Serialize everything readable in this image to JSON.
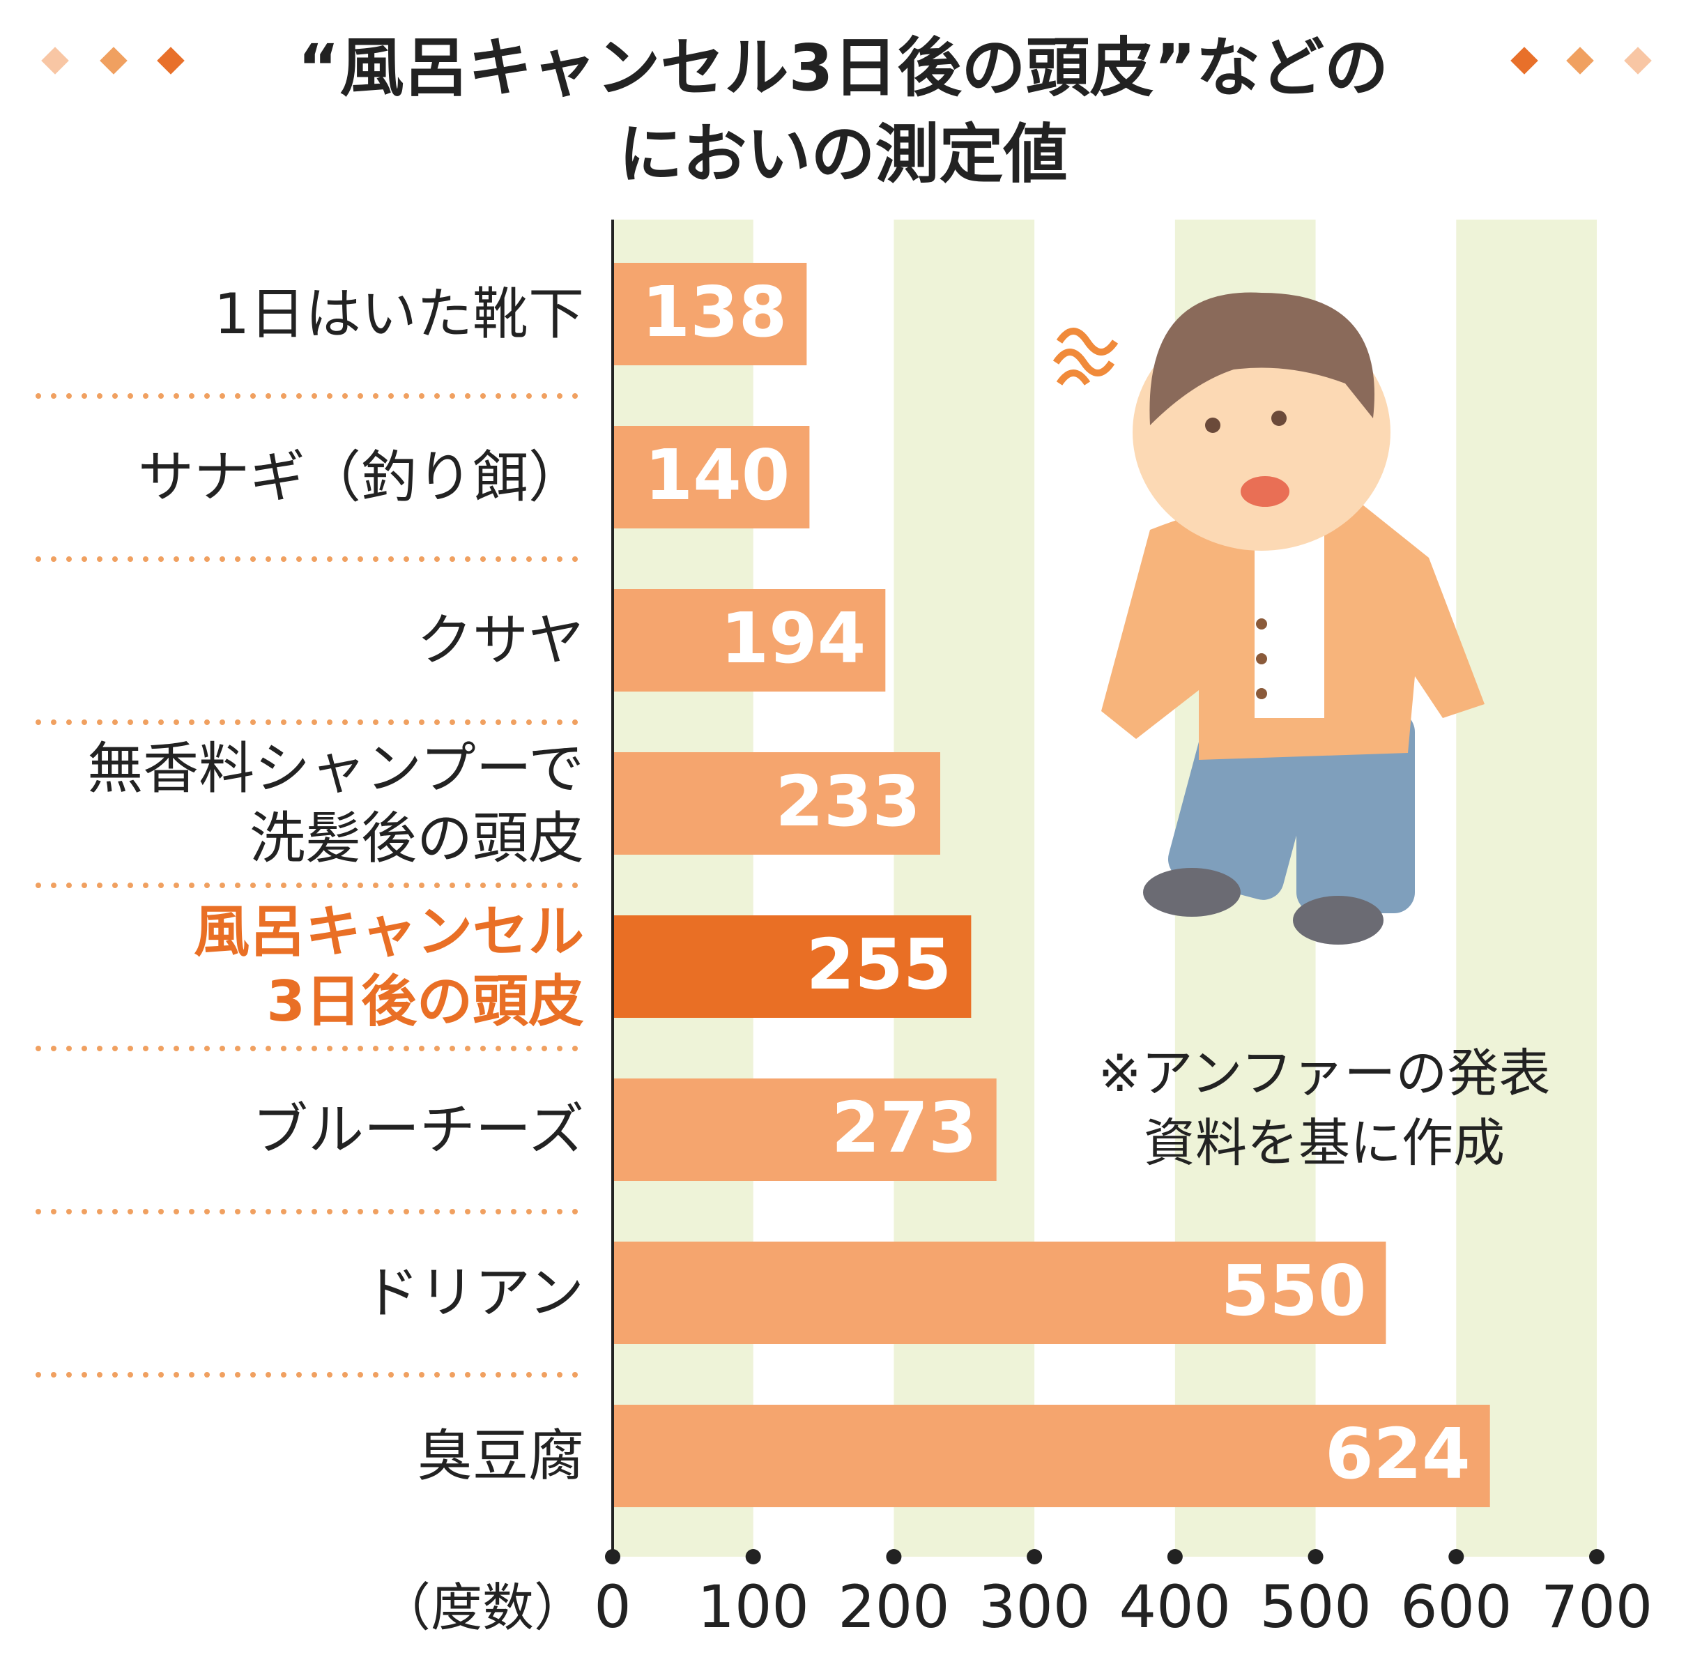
{
  "chart_data": {
    "type": "barh",
    "title": "“風呂キャンセル3日後の頭皮”などの\nにおいの測定値",
    "categories": [
      "1日はいた靴下",
      "サナギ（釣り餌）",
      "クサヤ",
      "無香料シャンプーで\n洗髪後の頭皮",
      "風呂キャンセル\n3日後の頭皮",
      "ブルーチーズ",
      "ドリアン",
      "臭豆腐"
    ],
    "values": [
      138,
      140,
      194,
      233,
      255,
      273,
      550,
      624
    ],
    "colors": [
      "#f5a56e",
      "#f5a56e",
      "#f5a56e",
      "#f5a56e",
      "#e96f25",
      "#f5a56e",
      "#f5a56e",
      "#f5a56e"
    ],
    "label_colors": [
      "#222222",
      "#222222",
      "#222222",
      "#222222",
      "#e96f25",
      "#222222",
      "#222222",
      "#222222"
    ],
    "xlim": [
      0,
      700
    ],
    "xticks": [
      0,
      100,
      200,
      300,
      400,
      500,
      600,
      700
    ],
    "x_axis_label": "（度数）",
    "note": "※アンファーの発表\n資料を基に作成"
  }
}
